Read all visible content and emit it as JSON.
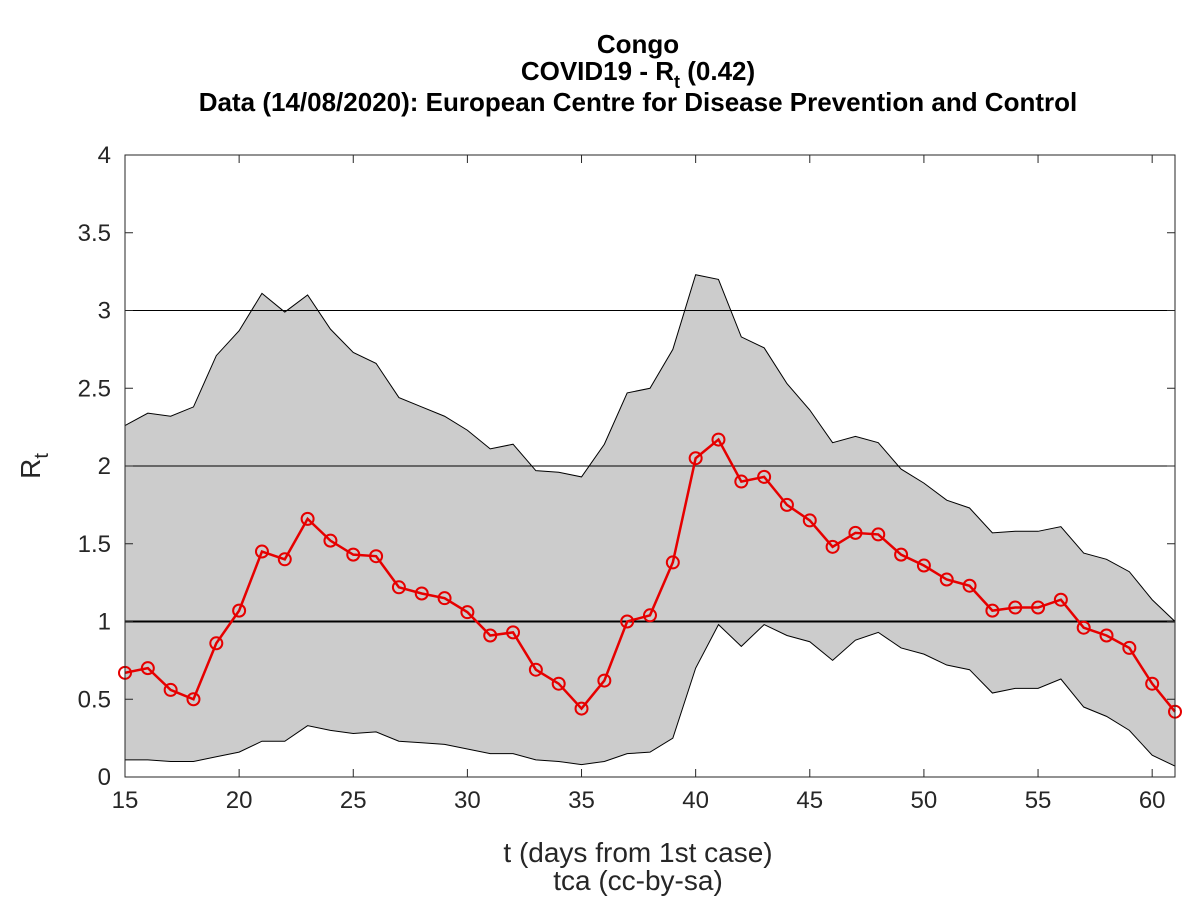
{
  "chart_data": {
    "type": "line",
    "title_lines": [
      "Congo",
      "COVID19 - ",
      "Data (14/08/2020): European Centre for Disease Prevention and Control"
    ],
    "title_symbol": "R",
    "title_symbol_sub": "t",
    "title_value": " (0.42)",
    "xlabel": "t (days from 1st case)",
    "ylabel": "R",
    "ylabel_sub": "t",
    "footer": "tca (cc-by-sa)",
    "xlim": [
      15,
      61
    ],
    "ylim": [
      0,
      4
    ],
    "x_ticks": [
      15,
      20,
      25,
      30,
      35,
      40,
      45,
      50,
      55,
      60
    ],
    "x_tick_labels": [
      "15",
      "20",
      "25",
      "30",
      "35",
      "40",
      "45",
      "50",
      "55",
      "60"
    ],
    "y_ticks": [
      0,
      0.5,
      1,
      1.5,
      2,
      2.5,
      3,
      3.5,
      4
    ],
    "y_tick_labels": [
      "0",
      "0.5",
      "1",
      "1.5",
      "2",
      "2.5",
      "3",
      "3.5",
      "4"
    ],
    "grid_y": [
      1,
      2,
      3
    ],
    "reference_line": 1,
    "colors": {
      "series": "#e60000",
      "band": "#cccccc",
      "axes": "#262626"
    },
    "x": [
      15,
      16,
      17,
      18,
      19,
      20,
      21,
      22,
      23,
      24,
      25,
      26,
      27,
      28,
      29,
      30,
      31,
      32,
      33,
      34,
      35,
      36,
      37,
      38,
      39,
      40,
      41,
      42,
      43,
      44,
      45,
      46,
      47,
      48,
      49,
      50,
      51,
      52,
      53,
      54,
      55,
      56,
      57,
      58,
      59,
      60,
      61
    ],
    "series": [
      {
        "values": [
          0.67,
          0.7,
          0.56,
          0.5,
          0.86,
          1.07,
          1.45,
          1.4,
          1.66,
          1.52,
          1.43,
          1.42,
          1.22,
          1.18,
          1.15,
          1.06,
          0.91,
          0.93,
          0.69,
          0.6,
          0.44,
          0.62,
          1.0,
          1.04,
          1.38,
          2.05,
          2.17,
          1.9,
          1.93,
          1.75,
          1.65,
          1.48,
          1.57,
          1.56,
          1.43,
          1.36,
          1.27,
          1.23,
          1.07,
          1.09,
          1.09,
          1.14,
          0.96,
          0.91,
          0.83,
          0.6,
          0.42
        ]
      }
    ],
    "band_upper": [
      2.26,
      2.34,
      2.32,
      2.38,
      2.71,
      2.87,
      3.11,
      2.99,
      3.1,
      2.88,
      2.73,
      2.66,
      2.44,
      2.38,
      2.32,
      2.23,
      2.11,
      2.14,
      1.97,
      1.96,
      1.93,
      2.14,
      2.47,
      2.5,
      2.75,
      3.23,
      3.2,
      2.83,
      2.76,
      2.53,
      2.36,
      2.15,
      2.19,
      2.15,
      1.98,
      1.89,
      1.78,
      1.73,
      1.57,
      1.58,
      1.58,
      1.61,
      1.44,
      1.4,
      1.32,
      1.14,
      1.0
    ],
    "band_lower": [
      0.11,
      0.11,
      0.1,
      0.1,
      0.13,
      0.16,
      0.23,
      0.23,
      0.33,
      0.3,
      0.28,
      0.29,
      0.23,
      0.22,
      0.21,
      0.18,
      0.15,
      0.15,
      0.11,
      0.1,
      0.08,
      0.1,
      0.15,
      0.16,
      0.25,
      0.7,
      0.98,
      0.84,
      0.98,
      0.91,
      0.87,
      0.75,
      0.88,
      0.93,
      0.83,
      0.79,
      0.72,
      0.69,
      0.54,
      0.57,
      0.57,
      0.63,
      0.45,
      0.39,
      0.3,
      0.14,
      0.07
    ]
  }
}
